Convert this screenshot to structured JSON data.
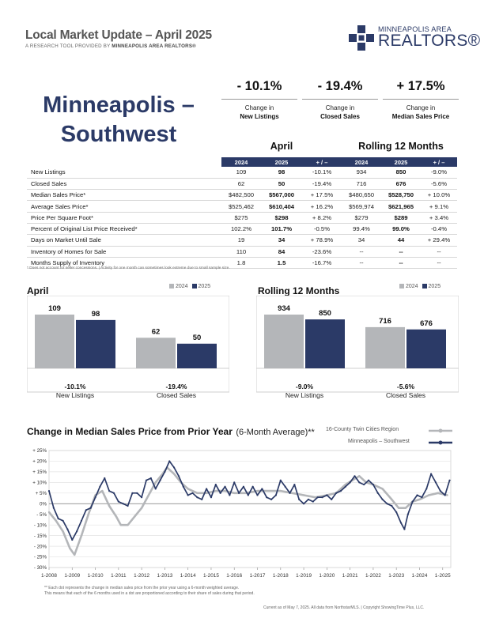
{
  "header": {
    "title": "Local Market Update – April 2025",
    "subtitle_pre": "A RESEARCH TOOL PROVIDED BY ",
    "subtitle_org": "MINNEAPOLIS AREA REALTORS®",
    "logo_small": "MINNEAPOLIS AREA",
    "logo_big": "REALTORS®"
  },
  "area": {
    "line1": "Minneapolis –",
    "line2": "Southwest"
  },
  "kpis": [
    {
      "value": "- 10.1%",
      "line1": "Change in",
      "line2": "New Listings"
    },
    {
      "value": "- 19.4%",
      "line1": "Change in",
      "line2": "Closed Sales"
    },
    {
      "value": "+ 17.5%",
      "line1": "Change in",
      "line2": "Median Sales Price"
    }
  ],
  "table": {
    "section_month": "April",
    "section_rolling": "Rolling 12 Months",
    "headers": [
      "2024",
      "2025",
      "+ / –",
      "2024",
      "2025",
      "+ / –"
    ],
    "rows": [
      {
        "label": "New Listings",
        "v": [
          "109",
          "98",
          "-10.1%",
          "934",
          "850",
          "-9.0%"
        ]
      },
      {
        "label": "Closed Sales",
        "v": [
          "62",
          "50",
          "-19.4%",
          "716",
          "676",
          "-5.6%"
        ]
      },
      {
        "label": "Median Sales Price*",
        "v": [
          "$482,500",
          "$567,000",
          "+ 17.5%",
          "$480,650",
          "$528,750",
          "+ 10.0%"
        ]
      },
      {
        "label": "Average Sales Price*",
        "v": [
          "$525,462",
          "$610,404",
          "+ 16.2%",
          "$569,974",
          "$621,965",
          "+ 9.1%"
        ]
      },
      {
        "label": "Price Per Square Foot*",
        "v": [
          "$275",
          "$298",
          "+ 8.2%",
          "$279",
          "$289",
          "+ 3.4%"
        ]
      },
      {
        "label": "Percent of Original List Price Received*",
        "v": [
          "102.2%",
          "101.7%",
          "-0.5%",
          "99.4%",
          "99.0%",
          "-0.4%"
        ]
      },
      {
        "label": "Days on Market Until Sale",
        "v": [
          "19",
          "34",
          "+ 78.9%",
          "34",
          "44",
          "+ 29.4%"
        ]
      },
      {
        "label": "Inventory of Homes for Sale",
        "v": [
          "110",
          "84",
          "-23.6%",
          "--",
          "--",
          "--"
        ]
      },
      {
        "label": "Months Supply of Inventory",
        "v": [
          "1.8",
          "1.5",
          "-16.7%",
          "--",
          "--",
          "--"
        ]
      }
    ],
    "note": "* Does not account for seller concessions.  |  Activity for one month can sometimes look extreme due to small sample size."
  },
  "colors": {
    "navy": "#2b3a67",
    "gray": "#b4b6b9",
    "text": "#222222"
  },
  "chart_data": [
    {
      "type": "bar",
      "title": "April",
      "legend": [
        "2024",
        "2025"
      ],
      "categories": [
        "New Listings",
        "Closed Sales"
      ],
      "pct_labels": [
        "-10.1%",
        "-19.4%"
      ],
      "series": [
        {
          "name": "2024",
          "values": [
            109,
            62
          ]
        },
        {
          "name": "2025",
          "values": [
            98,
            50
          ]
        }
      ]
    },
    {
      "type": "bar",
      "title": "Rolling 12 Months",
      "legend": [
        "2024",
        "2025"
      ],
      "categories": [
        "New Listings",
        "Closed Sales"
      ],
      "pct_labels": [
        "-9.0%",
        "-5.6%"
      ],
      "series": [
        {
          "name": "2024",
          "values": [
            934,
            716
          ]
        },
        {
          "name": "2025",
          "values": [
            850,
            676
          ]
        }
      ]
    },
    {
      "type": "line",
      "title": "Change in Median Sales Price from Prior Year",
      "title_suffix": "(6-Month Average)**",
      "legend_position": "top-right",
      "ylim": [
        -30,
        25
      ],
      "yticks": [
        "+ 25%",
        "+ 20%",
        "+ 15%",
        "+ 10%",
        "+ 5%",
        "0%",
        "- 5%",
        "- 10%",
        "- 15%",
        "- 20%",
        "- 25%",
        "- 30%"
      ],
      "xticks": [
        "1-2008",
        "1-2009",
        "1-2010",
        "1-2011",
        "1-2012",
        "1-2013",
        "1-2014",
        "1-2015",
        "1-2016",
        "1-2017",
        "1-2018",
        "1-2019",
        "1-2020",
        "1-2021",
        "1-2022",
        "1-2023",
        "1-2024",
        "1-2025"
      ],
      "series": [
        {
          "name": "16-County Twin Cities Region",
          "color": "#b4b6b9",
          "points": [
            [
              2008.0,
              -4
            ],
            [
              2008.3,
              -8
            ],
            [
              2008.6,
              -13
            ],
            [
              2008.9,
              -21
            ],
            [
              2009.1,
              -24
            ],
            [
              2009.4,
              -15
            ],
            [
              2009.7,
              -5
            ],
            [
              2010.0,
              4
            ],
            [
              2010.3,
              6
            ],
            [
              2010.6,
              -1
            ],
            [
              2010.9,
              -6
            ],
            [
              2011.1,
              -10
            ],
            [
              2011.4,
              -10
            ],
            [
              2011.7,
              -6
            ],
            [
              2012.0,
              -2
            ],
            [
              2012.3,
              4
            ],
            [
              2012.6,
              10
            ],
            [
              2012.9,
              14
            ],
            [
              2013.1,
              17
            ],
            [
              2013.4,
              14
            ],
            [
              2013.7,
              10
            ],
            [
              2014.0,
              7
            ],
            [
              2014.4,
              5
            ],
            [
              2014.8,
              5
            ],
            [
              2015.2,
              6
            ],
            [
              2015.6,
              6
            ],
            [
              2016.0,
              5
            ],
            [
              2016.5,
              5
            ],
            [
              2017.0,
              6
            ],
            [
              2017.5,
              6
            ],
            [
              2018.0,
              6
            ],
            [
              2018.5,
              5
            ],
            [
              2019.0,
              4
            ],
            [
              2019.5,
              3
            ],
            [
              2020.0,
              4
            ],
            [
              2020.4,
              5
            ],
            [
              2020.8,
              9
            ],
            [
              2021.1,
              11
            ],
            [
              2021.4,
              13
            ],
            [
              2021.7,
              10
            ],
            [
              2022.0,
              9
            ],
            [
              2022.4,
              7
            ],
            [
              2022.8,
              2
            ],
            [
              2023.1,
              -2
            ],
            [
              2023.4,
              -2
            ],
            [
              2023.7,
              1
            ],
            [
              2024.0,
              2
            ],
            [
              2024.4,
              4
            ],
            [
              2024.8,
              5
            ],
            [
              2025.2,
              4
            ]
          ]
        },
        {
          "name": "Minneapolis – Southwest",
          "color": "#2b3a67",
          "points": [
            [
              2008.0,
              6
            ],
            [
              2008.2,
              -2
            ],
            [
              2008.4,
              -7
            ],
            [
              2008.6,
              -8
            ],
            [
              2008.8,
              -12
            ],
            [
              2009.0,
              -17
            ],
            [
              2009.2,
              -13
            ],
            [
              2009.4,
              -8
            ],
            [
              2009.6,
              -3
            ],
            [
              2009.8,
              -2
            ],
            [
              2010.0,
              3
            ],
            [
              2010.2,
              8
            ],
            [
              2010.4,
              12
            ],
            [
              2010.6,
              6
            ],
            [
              2010.8,
              5
            ],
            [
              2011.0,
              1
            ],
            [
              2011.2,
              0
            ],
            [
              2011.4,
              -1
            ],
            [
              2011.6,
              5
            ],
            [
              2011.8,
              5
            ],
            [
              2012.0,
              3
            ],
            [
              2012.2,
              11
            ],
            [
              2012.4,
              12
            ],
            [
              2012.6,
              7
            ],
            [
              2012.8,
              11
            ],
            [
              2013.0,
              15
            ],
            [
              2013.2,
              20
            ],
            [
              2013.4,
              17
            ],
            [
              2013.6,
              13
            ],
            [
              2013.8,
              8
            ],
            [
              2014.0,
              4
            ],
            [
              2014.2,
              5
            ],
            [
              2014.4,
              3
            ],
            [
              2014.6,
              2
            ],
            [
              2014.8,
              7
            ],
            [
              2015.0,
              3
            ],
            [
              2015.2,
              9
            ],
            [
              2015.4,
              5
            ],
            [
              2015.6,
              8
            ],
            [
              2015.8,
              4
            ],
            [
              2016.0,
              10
            ],
            [
              2016.2,
              5
            ],
            [
              2016.4,
              8
            ],
            [
              2016.6,
              4
            ],
            [
              2016.8,
              8
            ],
            [
              2017.0,
              4
            ],
            [
              2017.2,
              7
            ],
            [
              2017.4,
              3
            ],
            [
              2017.6,
              2
            ],
            [
              2017.8,
              4
            ],
            [
              2018.0,
              11
            ],
            [
              2018.2,
              8
            ],
            [
              2018.4,
              5
            ],
            [
              2018.6,
              9
            ],
            [
              2018.8,
              2
            ],
            [
              2019.0,
              0
            ],
            [
              2019.2,
              2
            ],
            [
              2019.4,
              1
            ],
            [
              2019.6,
              3
            ],
            [
              2019.8,
              3
            ],
            [
              2020.0,
              4
            ],
            [
              2020.2,
              2
            ],
            [
              2020.4,
              5
            ],
            [
              2020.6,
              6
            ],
            [
              2020.8,
              8
            ],
            [
              2021.0,
              10
            ],
            [
              2021.2,
              13
            ],
            [
              2021.4,
              10
            ],
            [
              2021.6,
              9
            ],
            [
              2021.8,
              11
            ],
            [
              2022.0,
              9
            ],
            [
              2022.2,
              5
            ],
            [
              2022.4,
              2
            ],
            [
              2022.6,
              0
            ],
            [
              2022.8,
              -1
            ],
            [
              2023.0,
              -4
            ],
            [
              2023.2,
              -9
            ],
            [
              2023.35,
              -12
            ],
            [
              2023.5,
              -5
            ],
            [
              2023.7,
              1
            ],
            [
              2023.9,
              4
            ],
            [
              2024.1,
              3
            ],
            [
              2024.3,
              7
            ],
            [
              2024.5,
              14
            ],
            [
              2024.7,
              10
            ],
            [
              2024.9,
              6
            ],
            [
              2025.1,
              4
            ],
            [
              2025.3,
              11
            ]
          ]
        }
      ]
    }
  ],
  "footnote": {
    "line1": "** Each dot represents the change in median sales price from the prior year using a 6-month weighted average.",
    "line2": "This means that each of the 6 months used in a dot are proportioned according to their share of sales during that period.",
    "current": "Current as of May 7, 2025. All data from NorthstarMLS.  |  Copyright ShowingTime Plus, LLC."
  }
}
